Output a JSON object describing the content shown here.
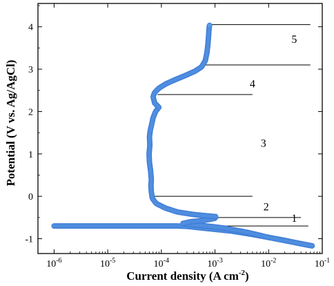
{
  "chart_data": {
    "type": "line",
    "xlabel": "Current density (A cm",
    "xlabel_superscript": "-2",
    "xlabel_suffix": ")",
    "ylabel": "Potential (V vs. Ag/AgCl)",
    "x_scale": "log",
    "xlim": [
      5e-07,
      0.1
    ],
    "ylim": [
      -1.35,
      4.55
    ],
    "x_ticks": [
      {
        "value": 1e-06,
        "base": "10",
        "exp": "-6"
      },
      {
        "value": 1e-05,
        "base": "10",
        "exp": "-5"
      },
      {
        "value": 0.0001,
        "base": "10",
        "exp": "-4"
      },
      {
        "value": 0.001,
        "base": "10",
        "exp": "-3"
      },
      {
        "value": 0.01,
        "base": "10",
        "exp": "-2"
      },
      {
        "value": 0.1,
        "base": "10",
        "exp": "-1"
      }
    ],
    "y_ticks": [
      {
        "value": -1,
        "label": "-1"
      },
      {
        "value": 0,
        "label": "0"
      },
      {
        "value": 1,
        "label": "1"
      },
      {
        "value": 2,
        "label": "2"
      },
      {
        "value": 3,
        "label": "3"
      },
      {
        "value": 4,
        "label": "4"
      }
    ],
    "grid": false,
    "series_color": "#3b78d4",
    "marker_color": "#5b9be6",
    "series": [
      {
        "name": "",
        "points": [
          [
            1e-06,
            -0.7
          ],
          [
            1.6e-05,
            -0.7
          ],
          [
            0.00015,
            -0.7
          ],
          [
            0.0002,
            -0.7
          ],
          [
            0.0003,
            -0.71
          ],
          [
            0.0005,
            -0.74
          ],
          [
            0.001,
            -0.78
          ],
          [
            0.002,
            -0.82
          ],
          [
            0.005,
            -0.9
          ],
          [
            0.01,
            -0.97
          ],
          [
            0.02,
            -1.04
          ],
          [
            0.04,
            -1.12
          ],
          [
            0.065,
            -1.17
          ],
          [
            0.065,
            -1.17
          ],
          [
            0.01,
            -0.97
          ],
          [
            0.004,
            -0.85
          ],
          [
            0.0015,
            -0.75
          ],
          [
            0.0006,
            -0.69
          ],
          [
            0.0003,
            -0.66
          ],
          [
            0.00025,
            -0.64
          ],
          [
            0.00035,
            -0.6
          ],
          [
            0.0006,
            -0.57
          ],
          [
            0.001,
            -0.52
          ],
          [
            0.00105,
            -0.48
          ],
          [
            0.0007,
            -0.46
          ],
          [
            0.0004,
            -0.43
          ],
          [
            0.0002,
            -0.37
          ],
          [
            0.00012,
            -0.28
          ],
          [
            8e-05,
            -0.17
          ],
          [
            6.8e-05,
            -0.05
          ],
          [
            6.5e-05,
            0.1
          ],
          [
            6.4e-05,
            0.25
          ],
          [
            6.5e-05,
            0.4
          ],
          [
            6.3e-05,
            0.6
          ],
          [
            6e-05,
            0.8
          ],
          [
            5.9e-05,
            1.0
          ],
          [
            6.1e-05,
            1.2
          ],
          [
            6e-05,
            1.4
          ],
          [
            6.2e-05,
            1.55
          ],
          [
            6.6e-05,
            1.7
          ],
          [
            7e-05,
            1.85
          ],
          [
            7.8e-05,
            2.0
          ],
          [
            9e-05,
            2.1
          ],
          [
            7.5e-05,
            2.2
          ],
          [
            7e-05,
            2.35
          ],
          [
            7.5e-05,
            2.45
          ],
          [
            9e-05,
            2.55
          ],
          [
            0.00012,
            2.65
          ],
          [
            0.00018,
            2.75
          ],
          [
            0.00028,
            2.85
          ],
          [
            0.00042,
            2.95
          ],
          [
            0.00056,
            3.05
          ],
          [
            0.00066,
            3.2
          ],
          [
            0.00071,
            3.4
          ],
          [
            0.00074,
            3.6
          ],
          [
            0.00076,
            3.8
          ],
          [
            0.00078,
            4.0
          ],
          [
            0.0008,
            4.05
          ]
        ]
      }
    ],
    "annotations": [
      {
        "label": "1",
        "text_x": 0.03,
        "text_y": -0.52,
        "line_x": [
          0.0004,
          0.055
        ],
        "line_y": -0.7
      },
      {
        "label": "2",
        "text_x": 0.009,
        "text_y": -0.25,
        "line_x": [
          0.001,
          0.04
        ],
        "line_y": -0.5
      },
      {
        "label": "3",
        "text_x": 0.008,
        "text_y": 1.25,
        "line_x": [
          6.8e-05,
          0.005
        ],
        "line_y": 0.0
      },
      {
        "label": "4",
        "text_x": 0.005,
        "text_y": 2.65,
        "line_x": [
          8.5e-05,
          0.005
        ],
        "line_y": 2.4
      },
      {
        "label": "5",
        "text_x": 0.03,
        "text_y": 3.7,
        "line_x": [
          0.0006,
          0.06
        ],
        "line_y": 3.1
      },
      {
        "label": "",
        "line_x": [
          0.0008,
          0.06
        ],
        "line_y": 4.05
      }
    ]
  }
}
